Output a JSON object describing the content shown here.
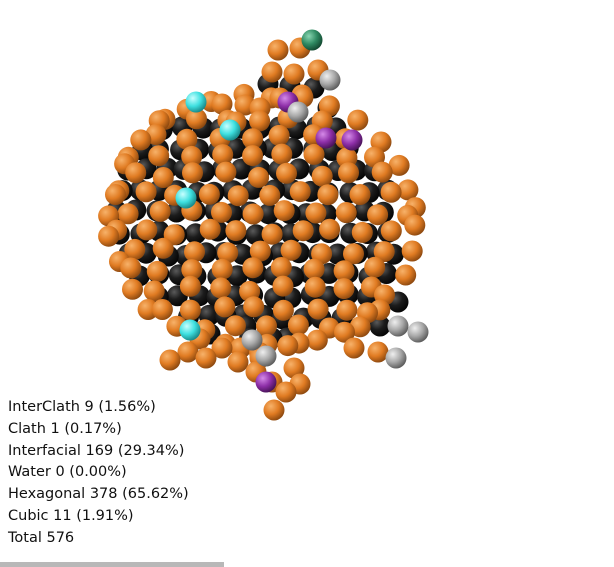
{
  "legend": [
    {
      "label": "InterClath 9 (1.56%)"
    },
    {
      "label": "Clath 1 (0.17%)"
    },
    {
      "label": "Interfacial 169 (29.34%)"
    },
    {
      "label": "Water 0 (0.00%)"
    },
    {
      "label": "Hexagonal 378 (65.62%)"
    },
    {
      "label": "Cubic 11 (1.91%)"
    },
    {
      "label": "Total 576"
    }
  ],
  "colors": {
    "orange": "#e07b22",
    "black": "#1a1a1a",
    "cyan": "#3ee0e0",
    "purple": "#8e2fa8",
    "gray": "#a8a8a8",
    "green": "#2f8a62",
    "background": "#ffffff"
  }
}
